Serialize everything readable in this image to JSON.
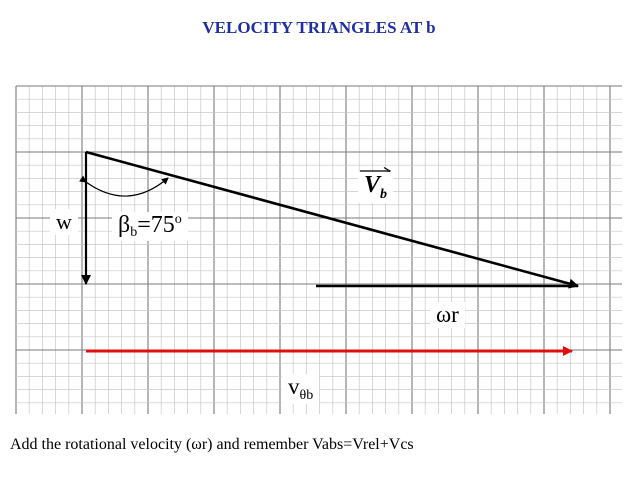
{
  "title": "VELOCITY TRIANGLES AT b",
  "labels": {
    "w": "w",
    "beta_symbol": "β",
    "beta_sub": "b",
    "beta_value": "=75",
    "beta_degree": "o",
    "vb_main": "V",
    "vb_sub": "b",
    "omega_r": "ωr",
    "vtheta_main": "v",
    "vtheta_sub": "θb"
  },
  "caption": "Add the rotational velocity (ωr) and remember Vabs=Vrel+Vcs",
  "colors": {
    "title": "#1f2fa3",
    "grid_fine": "#c8c8c8",
    "grid_major": "#7a7a7a",
    "vector": "#000000",
    "vtheta": "#e01010"
  }
}
